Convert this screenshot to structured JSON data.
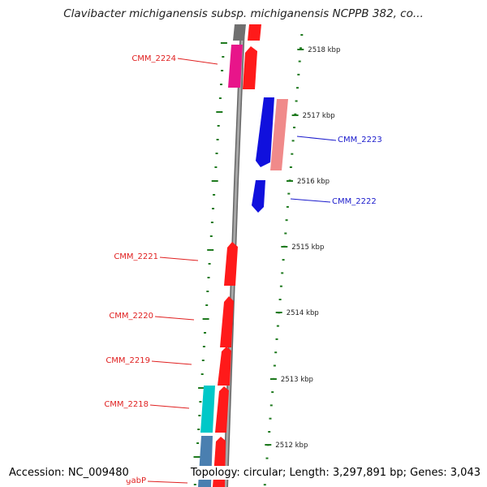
{
  "title": "Clavibacter michiganensis subsp. michiganensis NCPPB 382, co...",
  "footer": {
    "accession": "Accession: NC_009480",
    "summary": "Topology: circular; Length: 3,297,891 bp; Genes: 3,043"
  },
  "kbp_ticks": [
    {
      "label": "2518 kbp"
    },
    {
      "label": "2517 kbp"
    },
    {
      "label": "2516 kbp"
    },
    {
      "label": "2515 kbp"
    },
    {
      "label": "2514 kbp"
    },
    {
      "label": "2513 kbp"
    },
    {
      "label": "2512 kbp"
    }
  ],
  "gene_labels": [
    {
      "name": "CMM_2224",
      "color": "#e02020"
    },
    {
      "name": "CMM_2223",
      "color": "#1a1acc"
    },
    {
      "name": "CMM_2222",
      "color": "#1a1acc"
    },
    {
      "name": "CMM_2221",
      "color": "#e02020"
    },
    {
      "name": "CMM_2220",
      "color": "#e02020"
    },
    {
      "name": "CMM_2219",
      "color": "#e02020"
    },
    {
      "name": "CMM_2218",
      "color": "#e02020"
    },
    {
      "name": "gabP",
      "color": "#e02020"
    }
  ],
  "colors": {
    "red": "#ff1a1a",
    "blue": "#1010dd",
    "magenta": "#e8158a",
    "salmon": "#f08a8a",
    "cyan": "#00c8c8",
    "steelblue": "#4a7fb0",
    "gray": "#707070",
    "tick_green": "#1f7a1f",
    "backbone": "#888888"
  }
}
